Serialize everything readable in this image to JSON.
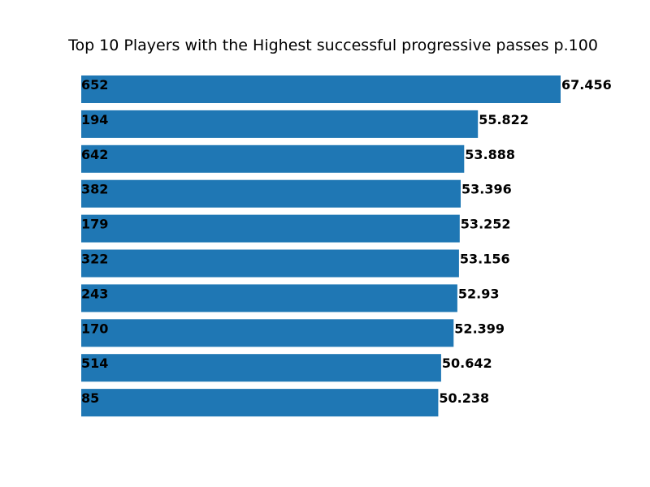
{
  "chart_data": {
    "type": "bar",
    "orientation": "horizontal",
    "title": "Top 10 Players with the Highest successful progressive passes p.100",
    "xlabel": "",
    "ylabel": "",
    "axes_visible": false,
    "grid": false,
    "categories": [
      "652",
      "194",
      "642",
      "382",
      "179",
      "322",
      "243",
      "170",
      "514",
      "85"
    ],
    "values": [
      67.456,
      55.822,
      53.888,
      53.396,
      53.252,
      53.156,
      52.93,
      52.399,
      50.642,
      50.238
    ],
    "value_labels": [
      "67.456",
      "55.822",
      "53.888",
      "53.396",
      "53.252",
      "53.156",
      "52.93",
      "52.399",
      "50.642",
      "50.238"
    ],
    "xlim": [
      0,
      67.456
    ],
    "bar_color": "#1f77b4",
    "label_color": "#000000"
  }
}
